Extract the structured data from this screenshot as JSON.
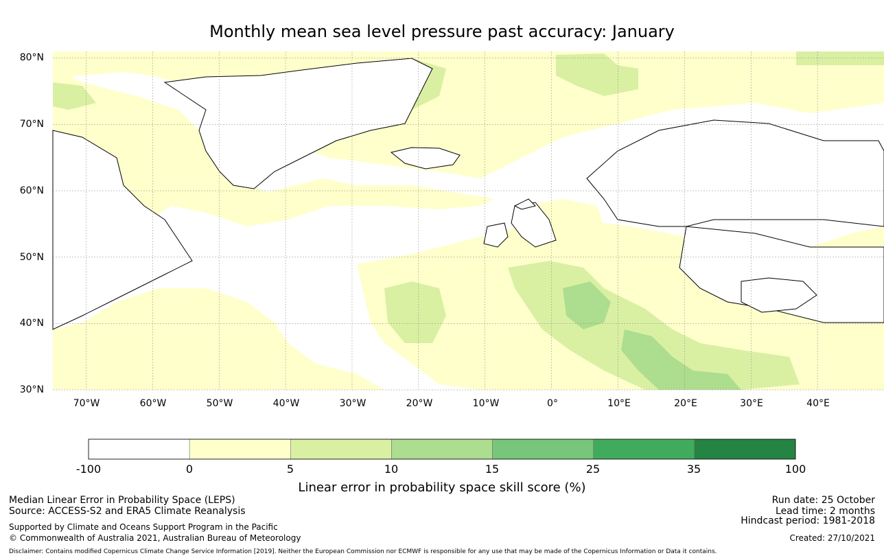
{
  "title": "Monthly mean sea level pressure past accuracy: January",
  "map": {
    "lat_labels": [
      "80°N",
      "70°N",
      "60°N",
      "50°N",
      "40°N",
      "30°N"
    ],
    "lon_labels": [
      "70°W",
      "60°W",
      "50°W",
      "40°W",
      "30°W",
      "20°W",
      "10°W",
      "0°",
      "10°E",
      "20°E",
      "30°E",
      "40°E"
    ],
    "extent": {
      "lon_min": -75,
      "lon_max": 50,
      "lat_min": 30,
      "lat_max": 81
    },
    "land_color": "#ffffff",
    "coast_color": "#000000"
  },
  "colorbar": {
    "ticks": [
      "-100",
      "0",
      "5",
      "10",
      "15",
      "25",
      "35",
      "100"
    ],
    "colors": [
      "#ffffff",
      "#ffffcc",
      "#d9f0a3",
      "#addd8e",
      "#78c679",
      "#41ab5d",
      "#238443"
    ],
    "label": "Linear error in probability space skill score (%)"
  },
  "footer": {
    "left": [
      "Median Linear Error in Probability Space (LEPS)",
      "Source: ACCESS-S2 and ERA5 Climate Reanalysis"
    ],
    "support": [
      "Supported by Climate and Oceans Support Program in the Pacific",
      "© Commonwealth of Australia 2021, Australian Bureau of Meteorology"
    ],
    "right": [
      "Run date: 25 October",
      "Lead time: 2 months",
      "Hindcast period: 1981-2018"
    ],
    "created": "Created: 27/10/2021",
    "disclaimer": "Disclaimer: Contains modified Copernicus Climate Change Service Information [2019]. Neither the European Commission nor ECMWF is responsible for any use that may be made of the Copernicus Information or Data it contains."
  }
}
